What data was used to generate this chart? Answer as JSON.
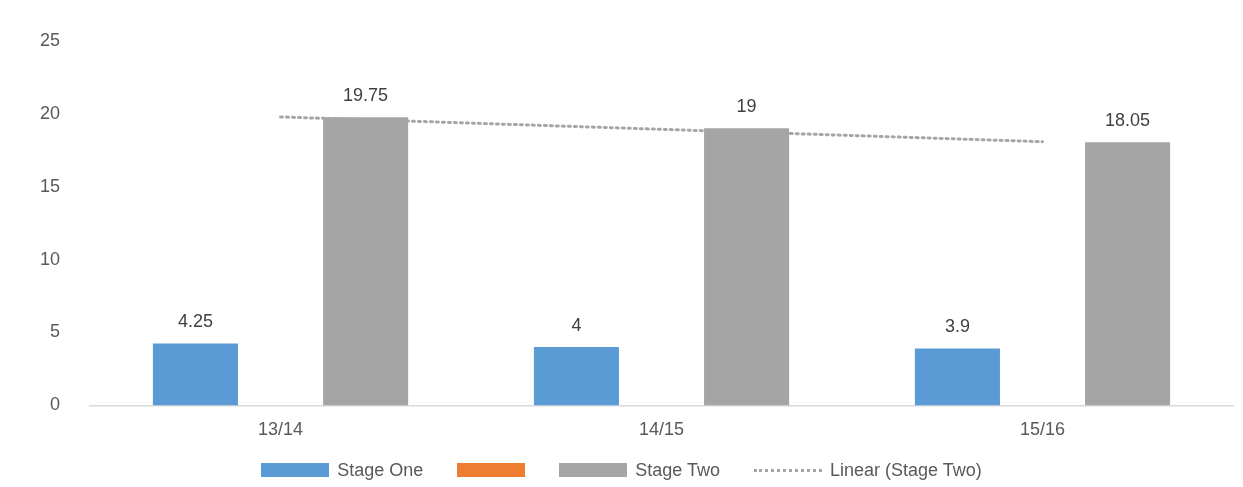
{
  "chart_data": {
    "type": "bar",
    "categories": [
      "13/14",
      "14/15",
      "15/16"
    ],
    "series": [
      {
        "name": "Stage One",
        "color": "#5b9bd5",
        "values": [
          4.25,
          4,
          3.9
        ],
        "value_labels": [
          "4.25",
          "4",
          "3.9"
        ]
      },
      {
        "color": "#ed7d31",
        "values": [
          null,
          null,
          null
        ]
      },
      {
        "name": "Stage Two",
        "color": "#a5a5a5",
        "values": [
          19.75,
          19,
          18.05
        ],
        "value_labels": [
          "19.75",
          "19",
          "18.05"
        ]
      },
      {
        "name": "Linear (Stage Two)",
        "type": "line",
        "color": "#a5a5a5",
        "values": [
          19.78,
          18.93,
          18.08
        ],
        "marker": "none",
        "line_style": "dotted"
      }
    ],
    "ylim": [
      0,
      25
    ],
    "yticks": [
      0,
      5,
      10,
      15,
      20,
      25
    ],
    "grid": false,
    "legend": "bottom"
  }
}
